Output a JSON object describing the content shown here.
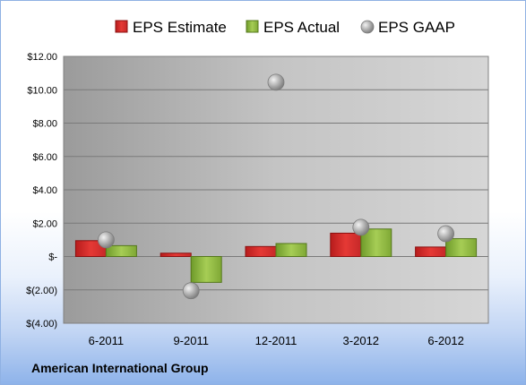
{
  "company": "American International Group",
  "chart_data": {
    "type": "bar",
    "categories": [
      "6-2011",
      "9-2011",
      "12-2011",
      "3-2012",
      "6-2012"
    ],
    "series": [
      {
        "name": "EPS Estimate",
        "kind": "bar",
        "color": "#d62728",
        "values": [
          0.95,
          0.2,
          0.6,
          1.4,
          0.57
        ]
      },
      {
        "name": "EPS Actual",
        "kind": "bar",
        "color": "#8db63b",
        "values": [
          0.65,
          -1.55,
          0.78,
          1.65,
          1.07
        ]
      },
      {
        "name": "EPS GAAP",
        "kind": "marker",
        "color": "#9e9e9e",
        "values": [
          1.0,
          -2.05,
          10.45,
          1.75,
          1.37
        ]
      }
    ],
    "ylim": [
      -4,
      12
    ],
    "yticks": [
      12,
      10,
      8,
      6,
      4,
      2,
      0,
      -2,
      -4
    ],
    "ytick_labels": [
      "$12.00",
      "$10.00",
      "$8.00",
      "$6.00",
      "$4.00",
      "$2.00",
      "$-",
      "$(2.00)",
      "$(4.00)"
    ],
    "grid": true,
    "legend": "top"
  }
}
